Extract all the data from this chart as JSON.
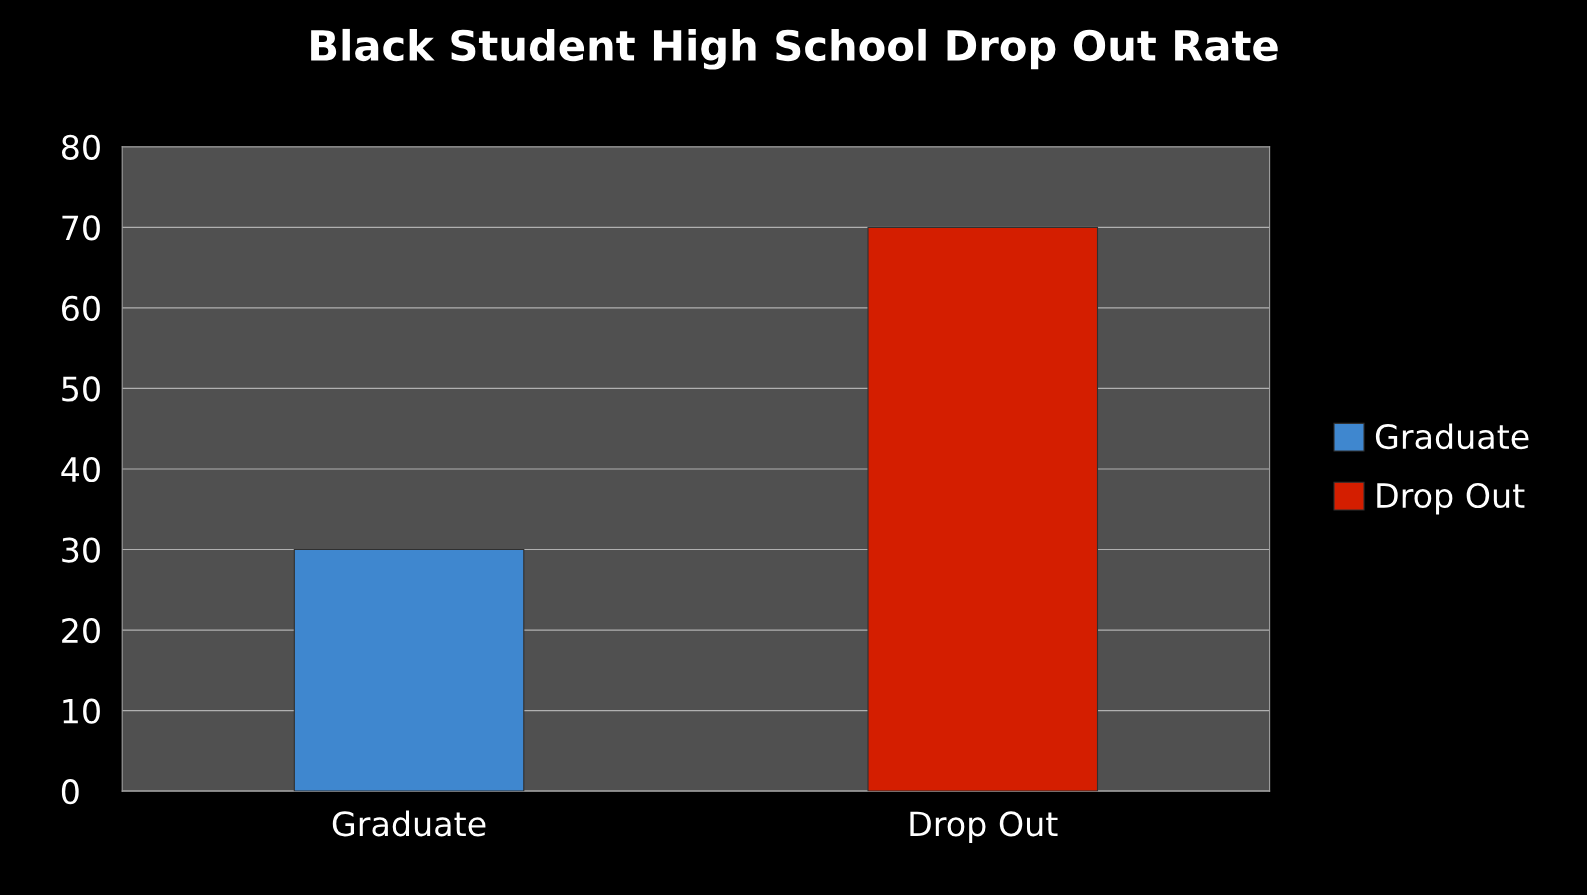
{
  "chart_data": {
    "type": "bar",
    "title": "Black Student High School Drop Out Rate",
    "categories": [
      "Graduate",
      "Drop Out"
    ],
    "series": [
      {
        "name": "Graduate",
        "color": "#3f87cf",
        "values": [
          30,
          null
        ]
      },
      {
        "name": "Drop Out",
        "color": "#d41e00",
        "values": [
          null,
          70
        ]
      }
    ],
    "ylim": [
      0,
      80
    ],
    "yticks": [
      0,
      10,
      20,
      30,
      40,
      50,
      60,
      70,
      80
    ],
    "grid": "y",
    "legend": "right"
  }
}
